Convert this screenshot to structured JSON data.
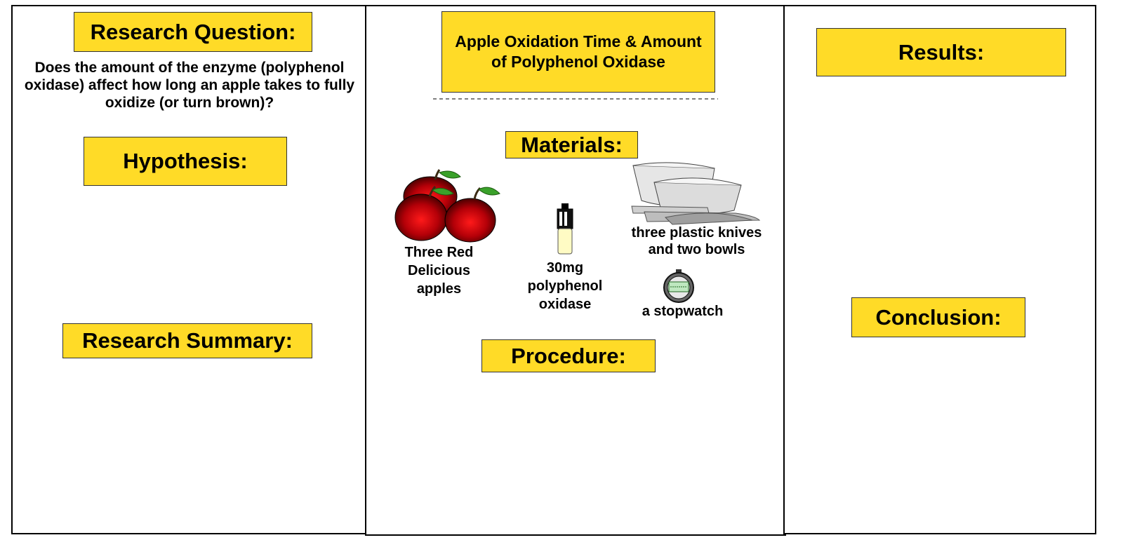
{
  "research_question": {
    "heading": "Research Question:",
    "text": "Does the amount of the enzyme (polyphenol oxidase) affect how long an apple takes to fully oxidize (or turn brown)?"
  },
  "hypothesis": {
    "heading": "Hypothesis:"
  },
  "research_summary": {
    "heading": "Research Summary:"
  },
  "title": {
    "text": "Apple Oxidation Time & Amount of Polyphenol Oxidase"
  },
  "materials": {
    "heading": "Materials:",
    "apples_label": "Three Red Delicious apples",
    "enzyme_label": "30mg polyphenol oxidase",
    "knives_bowls_label": "three plastic knives and two bowls",
    "stopwatch_label": "a stopwatch"
  },
  "procedure": {
    "heading": "Procedure:"
  },
  "results": {
    "heading": "Results:"
  },
  "conclusion": {
    "heading": "Conclusion:"
  },
  "colors": {
    "label_fill": "#ffdb27",
    "border": "#000000",
    "apple_red": "#c0000a",
    "leaf_green": "#3aa12a"
  }
}
